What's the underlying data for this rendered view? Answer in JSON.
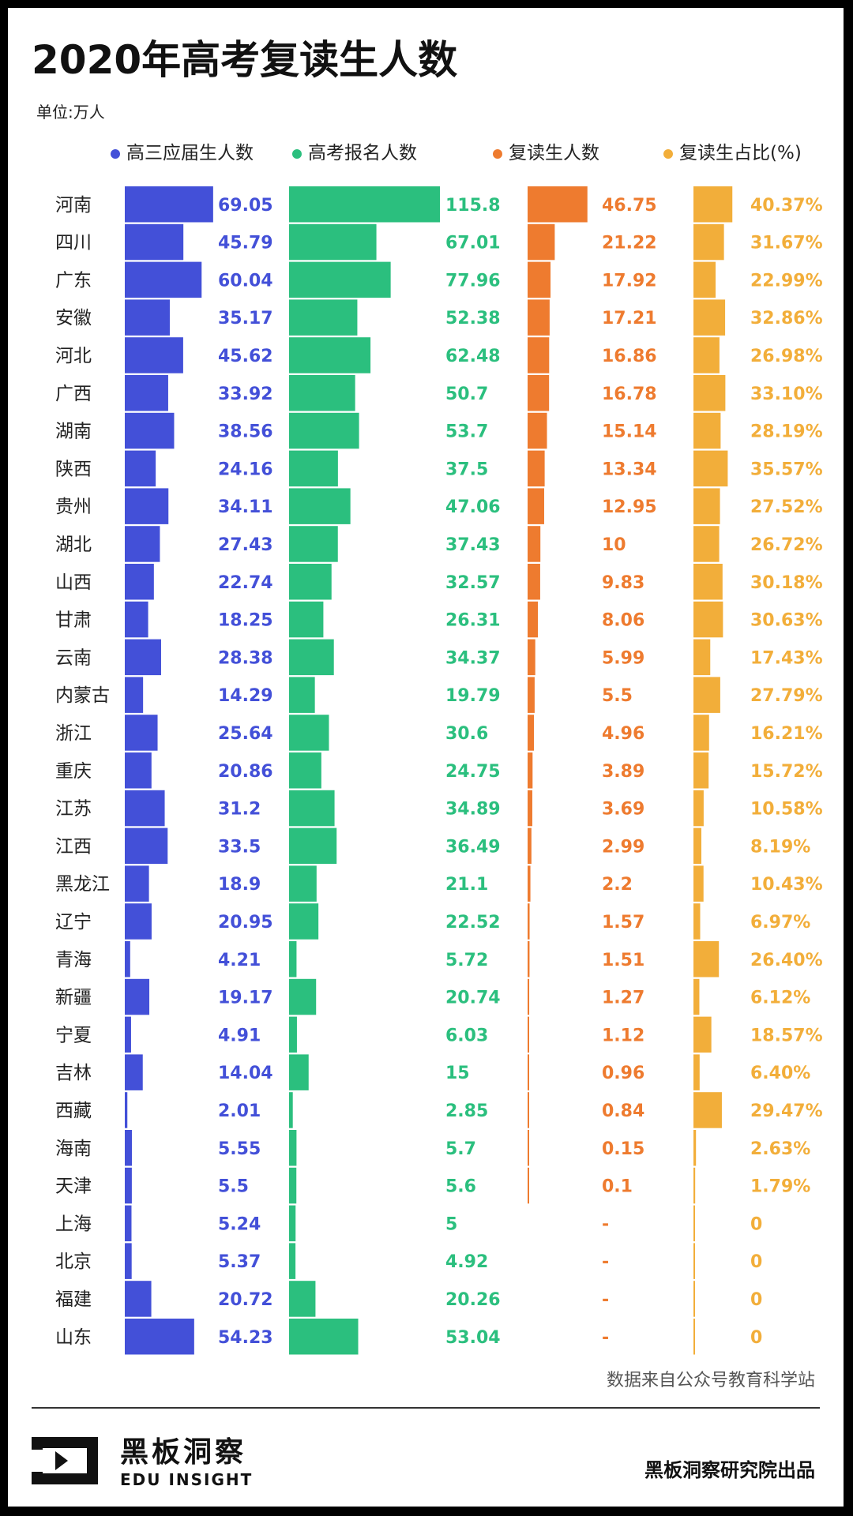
{
  "title": "2020年高考复读生人数",
  "unit": "单位:万人",
  "source": "数据来自公众号教育科学站",
  "brand": {
    "cn": "黑板洞察",
    "en": "EDU INSIGHT",
    "publisher": "黑板洞察研究院出品"
  },
  "colors": {
    "blue": "#4350d8",
    "green": "#2bbf7e",
    "orange": "#ee7b2f",
    "yellow": "#f2ae3a"
  },
  "chart_data": {
    "type": "bar",
    "categories": [
      "河南",
      "四川",
      "广东",
      "安徽",
      "河北",
      "广西",
      "湖南",
      "陕西",
      "贵州",
      "湖北",
      "山西",
      "甘肃",
      "云南",
      "内蒙古",
      "浙江",
      "重庆",
      "江苏",
      "江西",
      "黑龙江",
      "辽宁",
      "青海",
      "新疆",
      "宁夏",
      "吉林",
      "西藏",
      "海南",
      "天津",
      "上海",
      "北京",
      "福建",
      "山东"
    ],
    "series": [
      {
        "name": "高三应届生人数",
        "color": "#4350d8",
        "values": [
          69.05,
          45.79,
          60.04,
          35.17,
          45.62,
          33.92,
          38.56,
          24.16,
          34.11,
          27.43,
          22.74,
          18.25,
          28.38,
          14.29,
          25.64,
          20.86,
          31.2,
          33.5,
          18.9,
          20.95,
          4.21,
          19.17,
          4.91,
          14.04,
          2.01,
          5.55,
          5.5,
          5.24,
          5.37,
          20.72,
          54.23
        ],
        "labels": [
          "69.05",
          "45.79",
          "60.04",
          "35.17",
          "45.62",
          "33.92",
          "38.56",
          "24.16",
          "34.11",
          "27.43",
          "22.74",
          "18.25",
          "28.38",
          "14.29",
          "25.64",
          "20.86",
          "31.2",
          "33.5",
          "18.9",
          "20.95",
          "4.21",
          "19.17",
          "4.91",
          "14.04",
          "2.01",
          "5.55",
          "5.5",
          "5.24",
          "5.37",
          "20.72",
          "54.23"
        ]
      },
      {
        "name": "高考报名人数",
        "color": "#2bbf7e",
        "values": [
          115.8,
          67.01,
          77.96,
          52.38,
          62.48,
          50.7,
          53.7,
          37.5,
          47.06,
          37.43,
          32.57,
          26.31,
          34.37,
          19.79,
          30.6,
          24.75,
          34.89,
          36.49,
          21.1,
          22.52,
          5.72,
          20.74,
          6.03,
          15,
          2.85,
          5.7,
          5.6,
          5,
          4.92,
          20.26,
          53.04
        ],
        "labels": [
          "115.8",
          "67.01",
          "77.96",
          "52.38",
          "62.48",
          "50.7",
          "53.7",
          "37.5",
          "47.06",
          "37.43",
          "32.57",
          "26.31",
          "34.37",
          "19.79",
          "30.6",
          "24.75",
          "34.89",
          "36.49",
          "21.1",
          "22.52",
          "5.72",
          "20.74",
          "6.03",
          "15",
          "2.85",
          "5.7",
          "5.6",
          "5",
          "4.92",
          "20.26",
          "53.04"
        ]
      },
      {
        "name": "复读生人数",
        "color": "#ee7b2f",
        "values": [
          46.75,
          21.22,
          17.92,
          17.21,
          16.86,
          16.78,
          15.14,
          13.34,
          12.95,
          10,
          9.83,
          8.06,
          5.99,
          5.5,
          4.96,
          3.89,
          3.69,
          2.99,
          2.2,
          1.57,
          1.51,
          1.27,
          1.12,
          0.96,
          0.84,
          0.15,
          0.1,
          null,
          null,
          null,
          null
        ],
        "labels": [
          "46.75",
          "21.22",
          "17.92",
          "17.21",
          "16.86",
          "16.78",
          "15.14",
          "13.34",
          "12.95",
          "10",
          "9.83",
          "8.06",
          "5.99",
          "5.5",
          "4.96",
          "3.89",
          "3.69",
          "2.99",
          "2.2",
          "1.57",
          "1.51",
          "1.27",
          "1.12",
          "0.96",
          "0.84",
          "0.15",
          "0.1",
          "-",
          "-",
          "-",
          "-"
        ]
      },
      {
        "name": "复读生占比(%)",
        "color": "#f2ae3a",
        "values": [
          40.37,
          31.67,
          22.99,
          32.86,
          26.98,
          33.1,
          28.19,
          35.57,
          27.52,
          26.72,
          30.18,
          30.63,
          17.43,
          27.79,
          16.21,
          15.72,
          10.58,
          8.19,
          10.43,
          6.97,
          26.4,
          6.12,
          18.57,
          6.4,
          29.47,
          2.63,
          1.79,
          0,
          0,
          0,
          0
        ],
        "labels": [
          "40.37%",
          "31.67%",
          "22.99%",
          "32.86%",
          "26.98%",
          "33.10%",
          "28.19%",
          "35.57%",
          "27.52%",
          "26.72%",
          "30.18%",
          "30.63%",
          "17.43%",
          "27.79%",
          "16.21%",
          "15.72%",
          "10.58%",
          "8.19%",
          "10.43%",
          "6.97%",
          "26.40%",
          "6.12%",
          "18.57%",
          "6.40%",
          "29.47%",
          "2.63%",
          "1.79%",
          "0",
          "0",
          "0",
          "0"
        ]
      }
    ]
  }
}
